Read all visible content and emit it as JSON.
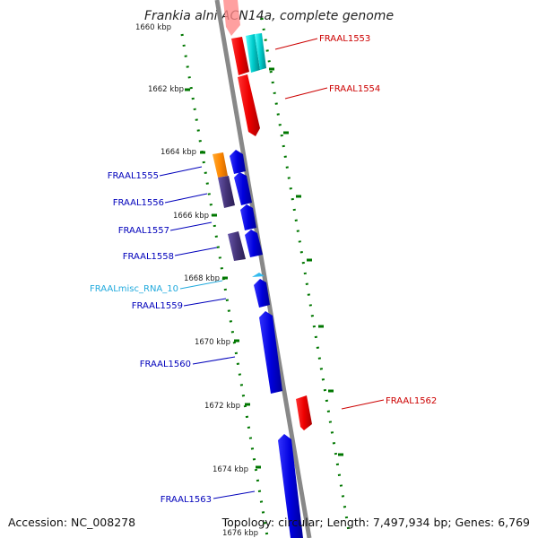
{
  "title": "Frankia alni ACN14a, complete genome",
  "footer": {
    "accession": "Accession: NC_008278",
    "summary": "Topology: circular; Length: 7,497,934 bp; Genes: 6,769"
  },
  "colors": {
    "forward_cds": "#ee0000",
    "forward_cds_other": "#00cccc",
    "reverse_cds": "#0000dd",
    "reverse_other": "#443377",
    "reverse_orange": "#ff8800",
    "misc_rna": "#33bbee",
    "backbone": "#888888",
    "tick": "#007700",
    "label_red": "#cc0000",
    "label_blue": "#0000bb",
    "label_cyan": "#22aadd"
  },
  "ticks": [
    {
      "label": "1660 kbp",
      "id": "1660"
    },
    {
      "label": "1662 kbp",
      "id": "1662"
    },
    {
      "label": "1664 kbp",
      "id": "1664"
    },
    {
      "label": "1666 kbp",
      "id": "1666"
    },
    {
      "label": "1668 kbp",
      "id": "1668"
    },
    {
      "label": "1670 kbp",
      "id": "1670"
    },
    {
      "label": "1672 kbp",
      "id": "1672"
    },
    {
      "label": "1674 kbp",
      "id": "1674"
    },
    {
      "label": "1676 kbp",
      "id": "1676"
    }
  ],
  "labels": {
    "FRAAL1553": "FRAAL1553",
    "FRAAL1554": "FRAAL1554",
    "FRAAL1555": "FRAAL1555",
    "FRAAL1556": "FRAAL1556",
    "FRAAL1557": "FRAAL1557",
    "FRAAL1558": "FRAAL1558",
    "FRAALmisc_RNA_10": "FRAALmisc_RNA_10",
    "FRAAL1559": "FRAAL1559",
    "FRAAL1560": "FRAAL1560",
    "FRAAL1562": "FRAAL1562",
    "FRAAL1563": "FRAAL1563"
  }
}
